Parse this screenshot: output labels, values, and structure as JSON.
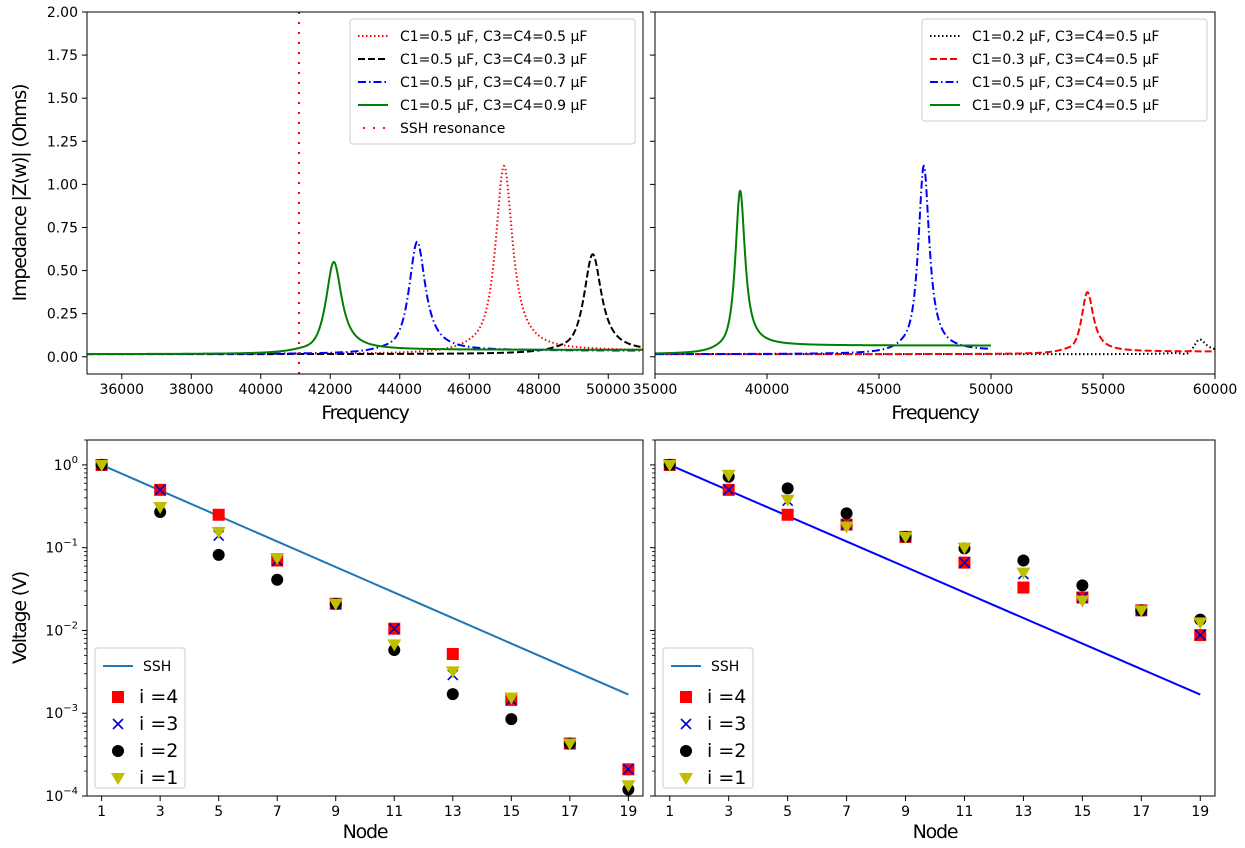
{
  "chart_data": [
    {
      "id": "top-left",
      "type": "line",
      "xlabel": "Frequency",
      "ylabel": "Impedance |Z(w)| (Ohms)",
      "xlim": [
        35000,
        51000
      ],
      "ylim": [
        -0.1,
        2.0
      ],
      "xticks": [
        36000,
        38000,
        40000,
        42000,
        44000,
        46000,
        48000,
        50000
      ],
      "xtick_labels": [
        "36000",
        "38000",
        "40000",
        "42000",
        "44000",
        "46000",
        "48000",
        "50000"
      ],
      "yticks": [
        0.0,
        0.25,
        0.5,
        0.75,
        1.0,
        1.25,
        1.5,
        1.75,
        2.0
      ],
      "ytick_labels": [
        "0.00",
        "0.25",
        "0.50",
        "0.75",
        "1.00",
        "1.25",
        "1.50",
        "1.75",
        "2.00"
      ],
      "grid": false,
      "legend_position": "top-right",
      "series": [
        {
          "name": "C1=0.5 μF, C3=C4=0.5 μF",
          "color": "#ff0000",
          "style": "dotted",
          "peak_x": 47000,
          "peak_y": 1.1,
          "base": 0.015,
          "tail": 0.035
        },
        {
          "name": "C1=0.5 μF, C3=C4=0.3 μF",
          "color": "#000000",
          "style": "dashed",
          "peak_x": 49550,
          "peak_y": 0.59,
          "base": 0.015,
          "tail": 0.03
        },
        {
          "name": "C1=0.5 μF, C3=C4=0.7 μF",
          "color": "#0000ff",
          "style": "dashdot",
          "peak_x": 44500,
          "peak_y": 0.66,
          "base": 0.015,
          "tail": 0.035
        },
        {
          "name": "C1=0.5 μF, C3=C4=0.9 μF",
          "color": "#008000",
          "style": "solid",
          "peak_x": 42100,
          "peak_y": 0.54,
          "base": 0.015,
          "tail": 0.04
        }
      ],
      "vline": {
        "name": "SSH resonance",
        "color": "#ff0000",
        "style": "sparse-dotted",
        "x": 41100
      }
    },
    {
      "id": "top-right",
      "type": "line",
      "xlabel": "Frequency",
      "ylabel": "",
      "xlim": [
        35000,
        60000
      ],
      "ylim": [
        -0.1,
        2.0
      ],
      "xticks": [
        35000,
        40000,
        45000,
        50000,
        55000,
        60000
      ],
      "xtick_labels": [
        "35000",
        "40000",
        "45000",
        "50000",
        "55000",
        "60000"
      ],
      "yticks": [
        0.0,
        0.25,
        0.5,
        0.75,
        1.0,
        1.25,
        1.5,
        1.75,
        2.0
      ],
      "grid": false,
      "legend_position": "top-right",
      "series": [
        {
          "name": "C1=0.2 μF, C3=C4=0.5 μF",
          "color": "#000000",
          "style": "dotted",
          "peak_x": 59300,
          "peak_y": 0.095,
          "base": 0.015,
          "tail": 0.03,
          "x_end": 60000
        },
        {
          "name": "C1=0.3 μF, C3=C4=0.5 μF",
          "color": "#ff0000",
          "style": "dashed",
          "peak_x": 54300,
          "peak_y": 0.37,
          "base": 0.015,
          "tail": 0.03,
          "x_end": 60000
        },
        {
          "name": "C1=0.5 μF, C3=C4=0.5 μF",
          "color": "#0000ff",
          "style": "dashdot",
          "peak_x": 47000,
          "peak_y": 1.1,
          "base": 0.015,
          "tail": 0.035,
          "x_end": 50000
        },
        {
          "name": "C1=0.9 μF, C3=C4=0.5 μF",
          "color": "#008000",
          "style": "solid",
          "peak_x": 38800,
          "peak_y": 0.94,
          "base": 0.015,
          "tail": 0.065,
          "x_end": 50000
        }
      ]
    },
    {
      "id": "bottom-left",
      "type": "scatter",
      "xlabel": "Node",
      "ylabel": "Voltage (V)",
      "yscale": "log",
      "xlim": [
        0.5,
        19.5
      ],
      "ylim": [
        0.0001,
        2.0
      ],
      "xticks": [
        1,
        3,
        5,
        7,
        9,
        11,
        13,
        15,
        17,
        19
      ],
      "xtick_labels": [
        "1",
        "3",
        "5",
        "7",
        "9",
        "11",
        "13",
        "15",
        "17",
        "19"
      ],
      "yticks": [
        0.0001,
        0.001,
        0.01,
        0.1,
        1
      ],
      "ytick_labels": [
        [
          "10",
          "−4"
        ],
        [
          "10",
          "−3"
        ],
        [
          "10",
          "−2"
        ],
        [
          "10",
          "−1"
        ],
        [
          "10",
          "0"
        ]
      ],
      "grid": false,
      "legend_position": "bottom-left",
      "line": {
        "name": "SSH",
        "color": "#1f77b4",
        "x": [
          1,
          19
        ],
        "y": [
          1.0,
          0.00168
        ]
      },
      "series": [
        {
          "name": "i =4",
          "marker": "square",
          "color": "#ff0000",
          "x": [
            1,
            3,
            5,
            7,
            9,
            11,
            13,
            15,
            17,
            19
          ],
          "y": [
            1.0,
            0.5,
            0.25,
            0.07,
            0.021,
            0.0105,
            0.0052,
            0.00145,
            0.00043,
            0.00021
          ]
        },
        {
          "name": "i =3",
          "marker": "x",
          "color": "#0000cc",
          "x": [
            1,
            3,
            5,
            7,
            9,
            11,
            13,
            15,
            17,
            19
          ],
          "y": [
            1.0,
            0.5,
            0.14,
            0.07,
            0.021,
            0.0105,
            0.0029,
            0.00145,
            0.00043,
            0.00021
          ]
        },
        {
          "name": "i =2",
          "marker": "circle",
          "color": "#000000",
          "x": [
            1,
            3,
            5,
            7,
            9,
            11,
            13,
            15,
            17,
            19
          ],
          "y": [
            1.0,
            0.27,
            0.082,
            0.041,
            0.021,
            0.0058,
            0.0017,
            0.00085,
            0.00043,
            0.00012
          ]
        },
        {
          "name": "i =1",
          "marker": "triangle-down",
          "color": "#bfbf00",
          "x": [
            1,
            3,
            5,
            7,
            9,
            11,
            13,
            15,
            17,
            19
          ],
          "y": [
            1.0,
            0.31,
            0.155,
            0.075,
            0.021,
            0.0068,
            0.0032,
            0.00155,
            0.00043,
            0.000135
          ]
        }
      ]
    },
    {
      "id": "bottom-right",
      "type": "scatter",
      "xlabel": "Node",
      "ylabel": "",
      "yscale": "log",
      "xlim": [
        0.5,
        19.5
      ],
      "ylim": [
        0.0001,
        2.0
      ],
      "xticks": [
        1,
        3,
        5,
        7,
        9,
        11,
        13,
        15,
        17,
        19
      ],
      "xtick_labels": [
        "1",
        "3",
        "5",
        "7",
        "9",
        "11",
        "13",
        "15",
        "17",
        "19"
      ],
      "yticks": [
        0.0001,
        0.001,
        0.01,
        0.1,
        1
      ],
      "grid": false,
      "legend_position": "bottom-left",
      "line": {
        "name": "SSH",
        "color": "#0000ff",
        "x": [
          1,
          19
        ],
        "y": [
          1.0,
          0.00168
        ]
      },
      "series": [
        {
          "name": "i =4",
          "marker": "square",
          "color": "#ff0000",
          "x": [
            1,
            3,
            5,
            7,
            9,
            11,
            13,
            15,
            17,
            19
          ],
          "y": [
            1.0,
            0.5,
            0.25,
            0.19,
            0.135,
            0.066,
            0.033,
            0.025,
            0.0175,
            0.0088
          ]
        },
        {
          "name": "i =3",
          "marker": "x",
          "color": "#0000cc",
          "x": [
            1,
            3,
            5,
            7,
            9,
            11,
            13,
            15,
            17,
            19
          ],
          "y": [
            1.0,
            0.5,
            0.37,
            0.19,
            0.135,
            0.066,
            0.048,
            0.025,
            0.0175,
            0.0088
          ]
        },
        {
          "name": "i =2",
          "marker": "circle",
          "color": "#000000",
          "x": [
            1,
            3,
            5,
            7,
            9,
            11,
            13,
            15,
            17,
            19
          ],
          "y": [
            1.0,
            0.72,
            0.52,
            0.26,
            0.135,
            0.098,
            0.07,
            0.035,
            0.0175,
            0.0135
          ]
        },
        {
          "name": "i =1",
          "marker": "triangle-down",
          "color": "#bfbf00",
          "x": [
            1,
            3,
            5,
            7,
            9,
            11,
            13,
            15,
            17,
            19
          ],
          "y": [
            1.0,
            0.76,
            0.38,
            0.18,
            0.135,
            0.1,
            0.05,
            0.023,
            0.0175,
            0.0125
          ]
        }
      ]
    }
  ]
}
